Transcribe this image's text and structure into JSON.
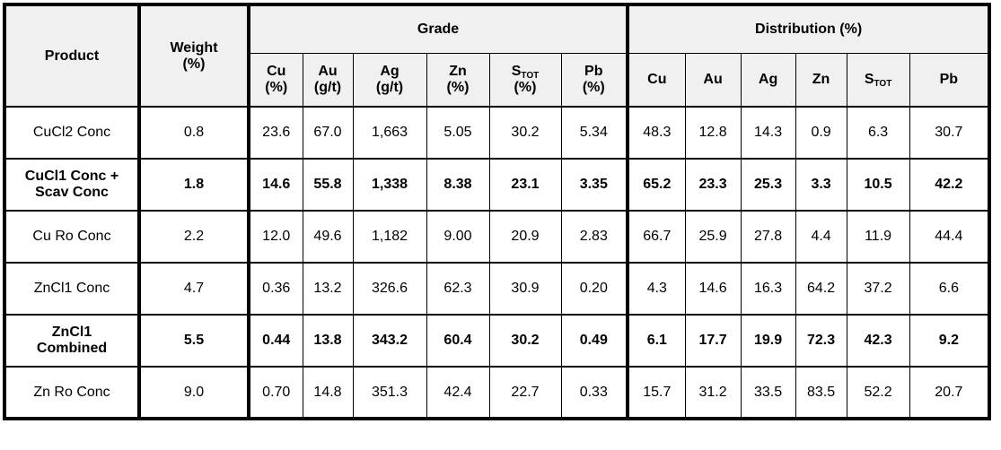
{
  "table": {
    "header": {
      "product": "Product",
      "weight": "Weight\n(%)",
      "grade_group": "Grade",
      "distribution_group": "Distribution (%)",
      "grade_cols": [
        {
          "el": "Cu",
          "sub": "",
          "unit": "(%)"
        },
        {
          "el": "Au",
          "sub": "",
          "unit": "(g/t)"
        },
        {
          "el": "Ag",
          "sub": "",
          "unit": "(g/t)"
        },
        {
          "el": "Zn",
          "sub": "",
          "unit": "(%)"
        },
        {
          "el": "S",
          "sub": "TOT",
          "unit": "(%)"
        },
        {
          "el": "Pb",
          "sub": "",
          "unit": "(%)"
        }
      ],
      "distribution_cols": [
        {
          "el": "Cu",
          "sub": "",
          "unit": ""
        },
        {
          "el": "Au",
          "sub": "",
          "unit": ""
        },
        {
          "el": "Ag",
          "sub": "",
          "unit": ""
        },
        {
          "el": "Zn",
          "sub": "",
          "unit": ""
        },
        {
          "el": "S",
          "sub": "TOT",
          "unit": ""
        },
        {
          "el": "Pb",
          "sub": "",
          "unit": ""
        }
      ]
    },
    "rows": [
      {
        "product": "CuCl2 Conc",
        "bold": false,
        "weight": "0.8",
        "grade": [
          "23.6",
          "67.0",
          "1,663",
          "5.05",
          "30.2",
          "5.34"
        ],
        "distribution": [
          "48.3",
          "12.8",
          "14.3",
          "0.9",
          "6.3",
          "30.7"
        ]
      },
      {
        "product": "CuCl1 Conc +\nScav Conc",
        "bold": true,
        "weight": "1.8",
        "grade": [
          "14.6",
          "55.8",
          "1,338",
          "8.38",
          "23.1",
          "3.35"
        ],
        "distribution": [
          "65.2",
          "23.3",
          "25.3",
          "3.3",
          "10.5",
          "42.2"
        ]
      },
      {
        "product": "Cu Ro Conc",
        "bold": false,
        "weight": "2.2",
        "grade": [
          "12.0",
          "49.6",
          "1,182",
          "9.00",
          "20.9",
          "2.83"
        ],
        "distribution": [
          "66.7",
          "25.9",
          "27.8",
          "4.4",
          "11.9",
          "44.4"
        ]
      },
      {
        "product": "ZnCl1 Conc",
        "bold": false,
        "weight": "4.7",
        "grade": [
          "0.36",
          "13.2",
          "326.6",
          "62.3",
          "30.9",
          "0.20"
        ],
        "distribution": [
          "4.3",
          "14.6",
          "16.3",
          "64.2",
          "37.2",
          "6.6"
        ]
      },
      {
        "product": "ZnCl1\nCombined",
        "bold": true,
        "weight": "5.5",
        "grade": [
          "0.44",
          "13.8",
          "343.2",
          "60.4",
          "30.2",
          "0.49"
        ],
        "distribution": [
          "6.1",
          "17.7",
          "19.9",
          "72.3",
          "42.3",
          "9.2"
        ]
      },
      {
        "product": "Zn Ro Conc",
        "bold": false,
        "weight": "9.0",
        "grade": [
          "0.70",
          "14.8",
          "351.3",
          "42.4",
          "22.7",
          "0.33"
        ],
        "distribution": [
          "15.7",
          "31.2",
          "33.5",
          "83.5",
          "52.2",
          "20.7"
        ]
      }
    ]
  }
}
